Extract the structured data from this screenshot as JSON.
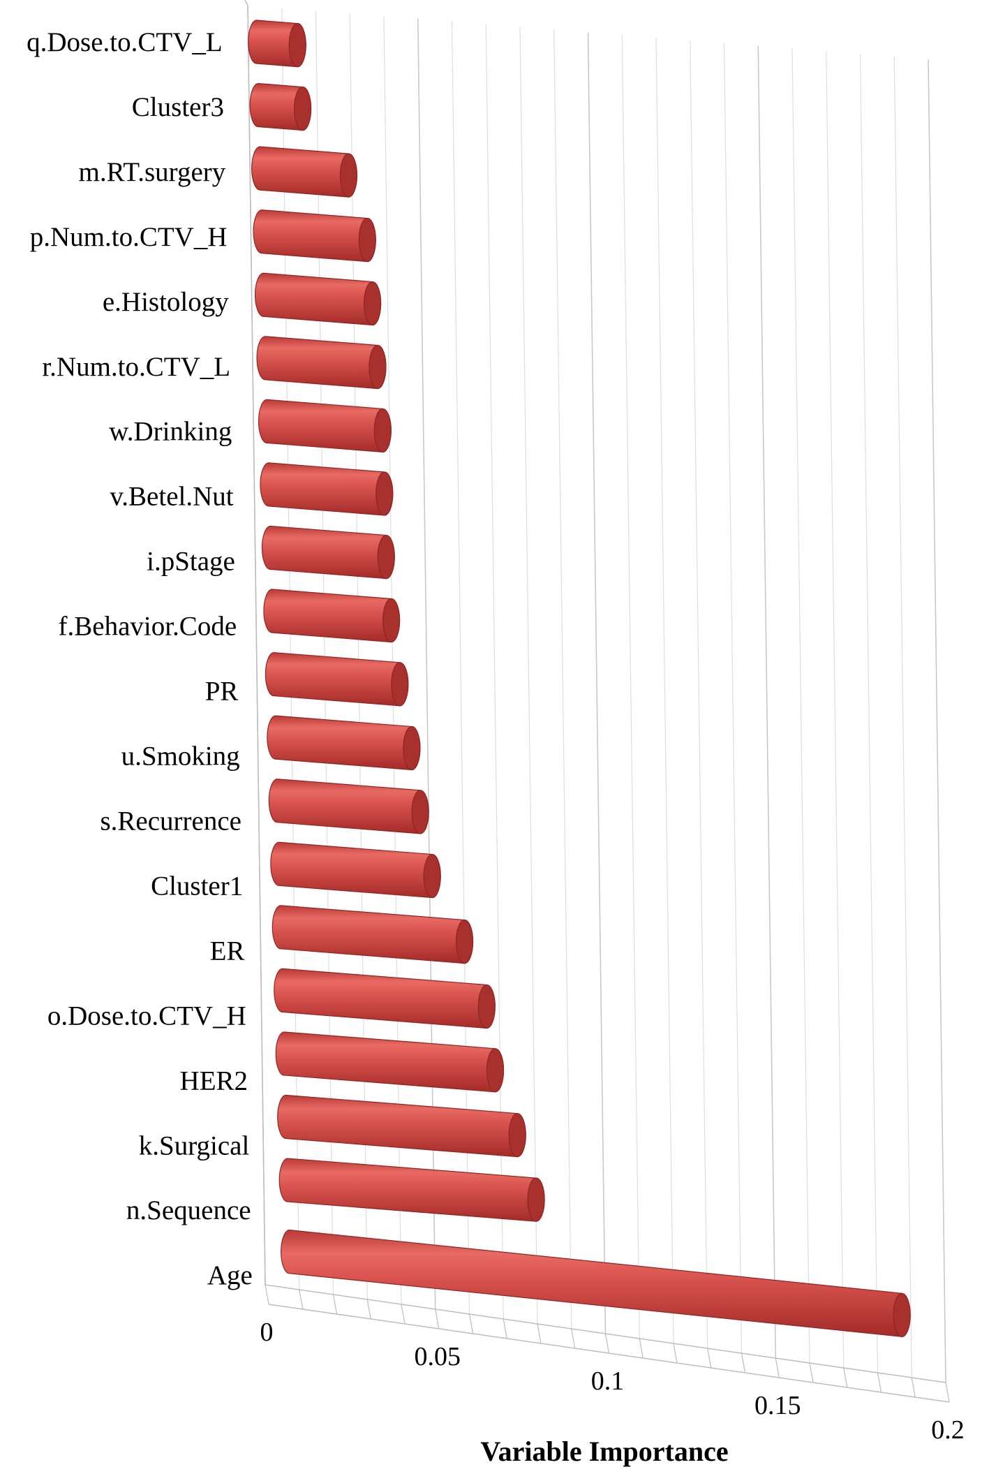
{
  "chart_data": {
    "type": "bar",
    "orientation": "horizontal",
    "style": "3d-cylinder",
    "title": "",
    "xlabel": "Variable Importance",
    "ylabel": "",
    "xlim": [
      0,
      0.2
    ],
    "x_ticks": [
      0,
      0.05,
      0.1,
      0.15,
      0.2
    ],
    "x_tick_labels": [
      "0",
      "0.05",
      "0.1",
      "0.15",
      "0.2"
    ],
    "grid": true,
    "legend": "none",
    "bar_color": "#D9534F",
    "categories": [
      "q.Dose.to.CTV_L",
      "Cluster3",
      "m.RT.surgery",
      "p.Num.to.CTV_H",
      "e.Histology",
      "r.Num.to.CTV_L",
      "w.Drinking",
      "v.Betel.Nut",
      "i.pStage",
      "f.Behavior.Code",
      "PR",
      "u.Smoking",
      "s.Recurrence",
      "Cluster1",
      "ER",
      "o.Dose.to.CTV_H",
      "HER2",
      "k.Surgical",
      "n.Sequence",
      "Age"
    ],
    "values": [
      0.012,
      0.013,
      0.026,
      0.031,
      0.032,
      0.033,
      0.034,
      0.034,
      0.034,
      0.035,
      0.037,
      0.04,
      0.042,
      0.045,
      0.054,
      0.06,
      0.062,
      0.068,
      0.073,
      0.18
    ]
  }
}
